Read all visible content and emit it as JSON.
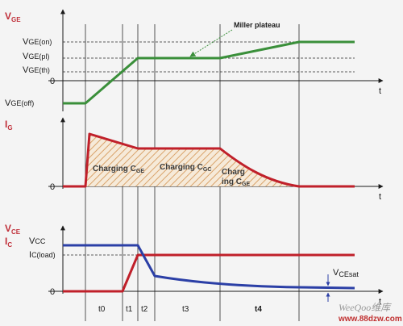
{
  "colors": {
    "vge": "#3a8f3a",
    "ig": "#c0202a",
    "vce": "#2b3fa6",
    "ic": "#c0202a",
    "label": "#c0303a",
    "hatch": "#d9a36a"
  },
  "panel1": {
    "y_label": "V",
    "y_label_sub": "GE",
    "levels": {
      "on": "V",
      "on_sub": "GE(on)",
      "pl": "V",
      "pl_sub": "GE(pl)",
      "th": "V",
      "th_sub": "GE(th)",
      "zero": "0",
      "off": "V",
      "off_sub": "GE(off)"
    },
    "t_label": "t",
    "annotation": "Miller plateau"
  },
  "panel2": {
    "y_label": "I",
    "y_label_sub": "G",
    "zero": "0",
    "t_label": "t",
    "charging_ge": "Charging C",
    "charging_ge_sub": "GE",
    "charging_gc": "Charging C",
    "charging_gc_sub": "GC",
    "charging3_line1": "Charg",
    "charging3_line2": "ing C",
    "charging3_sub": "GE"
  },
  "panel3": {
    "y_label1": "V",
    "y_label1_sub": "CE",
    "y_label2": "I",
    "y_label2_sub": "C",
    "vcc": "V",
    "vcc_sub": "CC",
    "icload": "I",
    "icload_sub": "C(load)",
    "zero": "0",
    "vcesat": "V",
    "vcesat_sub": "CEsat",
    "t_label": "t"
  },
  "intervals": [
    "t0",
    "t1",
    "t2",
    "t3",
    "t4"
  ],
  "watermark": {
    "brand": "WeeQoo维库",
    "url": "www.88dzw.com"
  }
}
